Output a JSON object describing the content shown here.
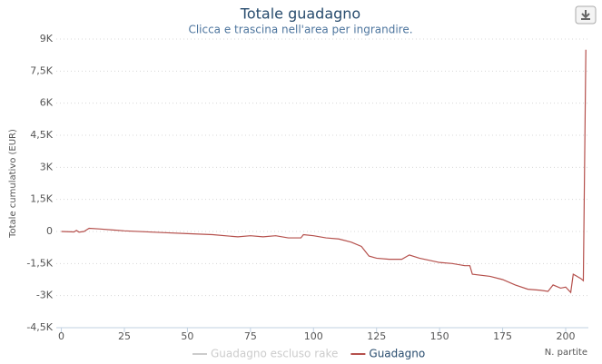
{
  "chart_data": {
    "type": "line",
    "title": "Totale guadagno",
    "subtitle": "Clicca e trascina nell'area per ingrandire.",
    "y_label": "Totale cumulativo (EUR)",
    "x_label": "N. partite",
    "x": [
      0,
      5,
      6,
      7,
      9,
      11,
      15,
      25,
      40,
      50,
      60,
      70,
      75,
      80,
      85,
      90,
      95,
      96,
      100,
      105,
      110,
      115,
      119,
      122,
      125,
      130,
      135,
      138,
      142,
      150,
      155,
      160,
      162,
      163,
      170,
      175,
      180,
      185,
      190,
      193,
      195,
      198,
      200,
      202,
      203,
      206,
      207,
      208
    ],
    "series": [
      {
        "name": "Guadagno escluso rake",
        "color": "#cccccc",
        "visible": false
      },
      {
        "name": "Guadagno",
        "color": "#b5504c",
        "visible": true,
        "values": [
          0,
          -20,
          50,
          -30,
          0,
          150,
          120,
          30,
          -50,
          -100,
          -150,
          -250,
          -200,
          -250,
          -200,
          -300,
          -300,
          -150,
          -200,
          -300,
          -350,
          -500,
          -700,
          -1150,
          -1250,
          -1300,
          -1300,
          -1100,
          -1250,
          -1450,
          -1500,
          -1600,
          -1600,
          -2000,
          -2100,
          -2250,
          -2500,
          -2700,
          -2750,
          -2800,
          -2500,
          -2650,
          -2600,
          -2850,
          -2000,
          -2200,
          -2300,
          8500
        ]
      }
    ],
    "xlim": [
      -2,
      209
    ],
    "xticks": [
      0,
      25,
      50,
      75,
      100,
      125,
      150,
      175,
      200
    ],
    "ylim": [
      -4500,
      9000
    ],
    "yticks": [
      {
        "value": -4500,
        "label": "-4,5K"
      },
      {
        "value": -3000,
        "label": "-3K"
      },
      {
        "value": -1500,
        "label": "-1,5K"
      },
      0,
      {
        "value": 1500,
        "label": "1,5K"
      },
      {
        "value": 3000,
        "label": "3K"
      },
      {
        "value": 4500,
        "label": "4,5K"
      },
      {
        "value": 6000,
        "label": "6K"
      },
      {
        "value": 7500,
        "label": "7,5K"
      },
      {
        "value": 9000,
        "label": "9K"
      }
    ],
    "grid": true
  }
}
